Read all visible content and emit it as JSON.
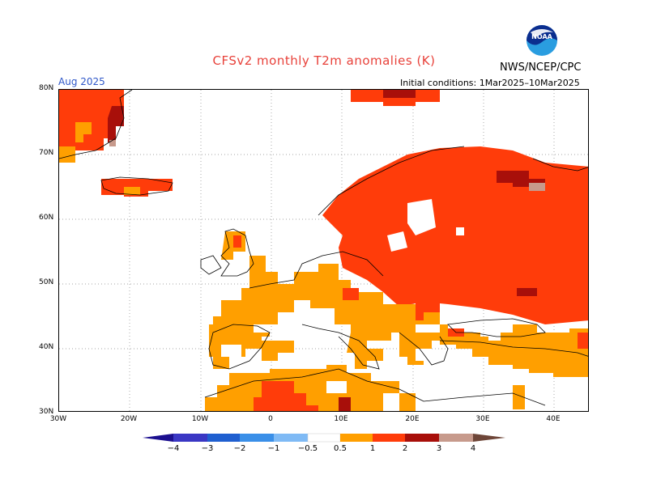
{
  "title": "CFSv2 monthly T2m anomalies (K)",
  "agency": "NWS/NCEP/CPC",
  "logo_text": "NOAA",
  "valid_month": "Aug 2025",
  "initial_conditions": "Initial conditions: 1Mar2025–10Mar2025",
  "lat_labels": [
    "80N",
    "70N",
    "60N",
    "50N",
    "40N",
    "30N"
  ],
  "lon_labels": [
    "30W",
    "20W",
    "10W",
    "0",
    "10E",
    "20E",
    "30E",
    "40E"
  ],
  "colorbar": {
    "tick_labels": [
      "−4",
      "−3",
      "−2",
      "−1",
      "−0.5",
      "0.5",
      "1",
      "2",
      "3",
      "4"
    ],
    "colors": [
      "#1b0f8f",
      "#3a37c4",
      "#1f5fd0",
      "#3a8fe8",
      "#7fbaf5",
      "#ffffff",
      "#ff9f00",
      "#ff3c0a",
      "#a80f0a",
      "#c79a8c",
      "#6e4638"
    ]
  },
  "anomaly_colors": {
    "weak_warm": "#ff9f00",
    "warm": "#ff3c0a",
    "strong_warm": "#a80f0a",
    "very_strong_warm": "#c79a8c"
  },
  "map_extent": {
    "lon_min": -30,
    "lon_max": 45,
    "lat_min": 30,
    "lat_max": 80
  }
}
